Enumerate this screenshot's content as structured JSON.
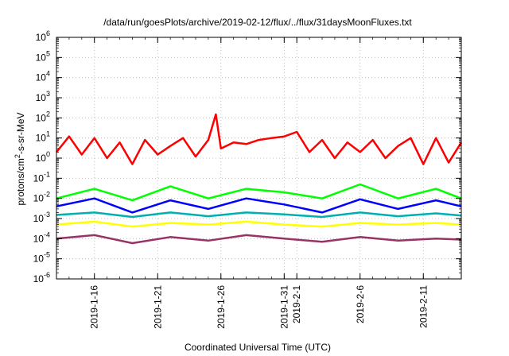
{
  "chart_data": {
    "type": "line",
    "title": "/data/run/goesPlots/archive/2019-02-12/flux/../flux/31daysMoonFluxes.txt",
    "xlabel": "Coordinated Universal Time (UTC)",
    "ylabel": "protons/cm2-s-sr-MeV",
    "y_scale": "log",
    "ylim": [
      1e-06,
      1000000.0
    ],
    "xlim": [
      "2019-01-13",
      "2019-02-14"
    ],
    "grid": true,
    "legend": "none",
    "y_ticks": [
      {
        "base": "10",
        "exp": "6"
      },
      {
        "base": "10",
        "exp": "5"
      },
      {
        "base": "10",
        "exp": "4"
      },
      {
        "base": "10",
        "exp": "3"
      },
      {
        "base": "10",
        "exp": "2"
      },
      {
        "base": "10",
        "exp": "1"
      },
      {
        "base": "10",
        "exp": "0"
      },
      {
        "base": "10",
        "exp": "-1"
      },
      {
        "base": "10",
        "exp": "-2"
      },
      {
        "base": "10",
        "exp": "-3"
      },
      {
        "base": "10",
        "exp": "-4"
      },
      {
        "base": "10",
        "exp": "-5"
      },
      {
        "base": "10",
        "exp": "-6"
      }
    ],
    "x_ticks": [
      {
        "date": "2019-01-16",
        "label": "2019-1-16"
      },
      {
        "date": "2019-01-21",
        "label": "2019-1-21"
      },
      {
        "date": "2019-01-26",
        "label": "2019-1-26"
      },
      {
        "date": "2019-01-31",
        "label": "2019-1-31"
      },
      {
        "date": "2019-02-01",
        "label": "2019-2-1"
      },
      {
        "date": "2019-02-06",
        "label": "2019-2-6"
      },
      {
        "date": "2019-02-11",
        "label": "2019-2-11"
      }
    ],
    "series": [
      {
        "color": "#ff0000",
        "x": [
          "2019-01-13",
          "2019-01-14",
          "2019-01-15",
          "2019-01-16",
          "2019-01-17",
          "2019-01-18",
          "2019-01-19",
          "2019-01-20",
          "2019-01-21",
          "2019-01-22",
          "2019-01-23",
          "2019-01-24",
          "2019-01-25",
          "2019-01-25.6",
          "2019-01-26",
          "2019-01-27",
          "2019-01-28",
          "2019-01-29",
          "2019-01-30",
          "2019-01-31",
          "2019-02-01",
          "2019-02-02",
          "2019-02-03",
          "2019-02-04",
          "2019-02-05",
          "2019-02-06",
          "2019-02-07",
          "2019-02-08",
          "2019-02-09",
          "2019-02-10",
          "2019-02-11",
          "2019-02-12",
          "2019-02-13",
          "2019-02-14"
        ],
        "values": [
          2,
          12,
          1.5,
          10,
          1,
          6,
          0.5,
          8,
          1.5,
          4,
          10,
          1.2,
          8,
          150,
          3,
          6,
          5,
          8,
          10,
          12,
          20,
          2,
          8,
          1,
          6,
          2,
          8,
          1,
          4,
          10,
          0.5,
          10,
          0.6,
          6
        ]
      },
      {
        "color": "#00ff00",
        "x": [
          "2019-01-13",
          "2019-01-16",
          "2019-01-19",
          "2019-01-22",
          "2019-01-25",
          "2019-01-28",
          "2019-01-31",
          "2019-02-03",
          "2019-02-06",
          "2019-02-09",
          "2019-02-12",
          "2019-02-14"
        ],
        "values": [
          0.01,
          0.03,
          0.008,
          0.04,
          0.01,
          0.03,
          0.02,
          0.01,
          0.05,
          0.01,
          0.03,
          0.01
        ]
      },
      {
        "color": "#0000ff",
        "x": [
          "2019-01-13",
          "2019-01-16",
          "2019-01-19",
          "2019-01-22",
          "2019-01-25",
          "2019-01-28",
          "2019-01-31",
          "2019-02-03",
          "2019-02-06",
          "2019-02-09",
          "2019-02-12",
          "2019-02-14"
        ],
        "values": [
          0.004,
          0.01,
          0.002,
          0.008,
          0.003,
          0.01,
          0.005,
          0.002,
          0.009,
          0.003,
          0.008,
          0.004
        ]
      },
      {
        "color": "#00b0b0",
        "x": [
          "2019-01-13",
          "2019-01-16",
          "2019-01-19",
          "2019-01-22",
          "2019-01-25",
          "2019-01-28",
          "2019-01-31",
          "2019-02-03",
          "2019-02-06",
          "2019-02-09",
          "2019-02-12",
          "2019-02-14"
        ],
        "values": [
          0.0015,
          0.002,
          0.0012,
          0.002,
          0.0013,
          0.002,
          0.0016,
          0.0012,
          0.002,
          0.0013,
          0.0018,
          0.0014
        ]
      },
      {
        "color": "#ffff00",
        "x": [
          "2019-01-13",
          "2019-01-16",
          "2019-01-19",
          "2019-01-22",
          "2019-01-25",
          "2019-01-28",
          "2019-01-31",
          "2019-02-03",
          "2019-02-06",
          "2019-02-09",
          "2019-02-12",
          "2019-02-14"
        ],
        "values": [
          0.0005,
          0.0007,
          0.0004,
          0.0006,
          0.0005,
          0.0007,
          0.0005,
          0.0004,
          0.0006,
          0.0005,
          0.0006,
          0.0005
        ]
      },
      {
        "color": "#993366",
        "x": [
          "2019-01-13",
          "2019-01-16",
          "2019-01-19",
          "2019-01-22",
          "2019-01-25",
          "2019-01-28",
          "2019-01-31",
          "2019-02-03",
          "2019-02-06",
          "2019-02-09",
          "2019-02-12",
          "2019-02-14"
        ],
        "values": [
          0.0001,
          0.00015,
          6e-05,
          0.00012,
          8e-05,
          0.00015,
          0.0001,
          7e-05,
          0.00012,
          8e-05,
          0.0001,
          9e-05
        ]
      }
    ]
  }
}
